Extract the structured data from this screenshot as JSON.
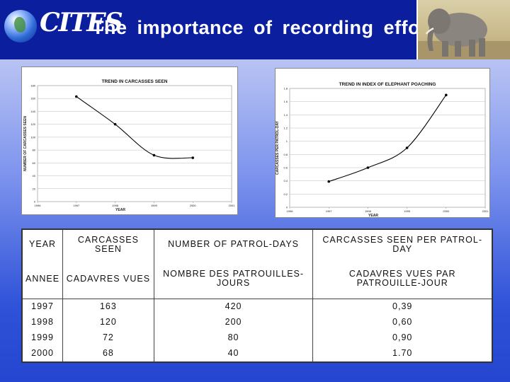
{
  "header": {
    "logo_text": "CITES",
    "title": "The importance of recording effort"
  },
  "colors": {
    "header_bg": "#0a1e9e",
    "line": "#000000"
  },
  "chart_data": [
    {
      "type": "line",
      "title": "TREND IN CARCASSES SEEN",
      "xlabel": "YEAR",
      "ylabel": "NUMBER OF CARCASSES SEEN",
      "x_ticks": [
        "1996",
        "1997",
        "1998",
        "1999",
        "2000",
        "2001"
      ],
      "y_ticks": [
        "0",
        "20",
        "40",
        "60",
        "80",
        "100",
        "120",
        "140",
        "160",
        "180"
      ],
      "xlim": [
        1996,
        2001
      ],
      "ylim": [
        0,
        180
      ],
      "grid": true,
      "series": [
        {
          "x": [
            1997,
            1998,
            1999,
            2000
          ],
          "y": [
            163,
            120,
            72,
            68
          ]
        }
      ]
    },
    {
      "type": "line",
      "title": "TREND IN INDEX OF ELEPHANT POACHING",
      "xlabel": "YEAR",
      "ylabel": "CARCASSES PER PATROL-DAY",
      "x_ticks": [
        "1996",
        "1997",
        "1998",
        "1999",
        "2000",
        "2001"
      ],
      "y_ticks": [
        "0",
        "0.2",
        "0.4",
        "0.6",
        "0.8",
        "1",
        "1.2",
        "1.4",
        "1.6",
        "1.8"
      ],
      "xlim": [
        1996,
        2001
      ],
      "ylim": [
        0,
        1.8
      ],
      "grid": true,
      "series": [
        {
          "x": [
            1997,
            1998,
            1999,
            2000
          ],
          "y": [
            0.39,
            0.6,
            0.9,
            1.7
          ]
        }
      ]
    }
  ],
  "table": {
    "headers": [
      [
        "YEAR",
        "CARCASSES SEEN",
        "NUMBER OF PATROL-DAYS",
        "CARCASSES SEEN PER PATROL-DAY"
      ],
      [
        "ANNEE",
        "CADAVRES VUES",
        "NOMBRE DES PATROUILLES-JOURS",
        "CADAVRES VUES PAR PATROUILLE-JOUR"
      ]
    ],
    "rows": [
      [
        "1997",
        "163",
        "420",
        "0,39"
      ],
      [
        "1998",
        "120",
        "200",
        "0,60"
      ],
      [
        "1999",
        "72",
        "80",
        "0,90"
      ],
      [
        "2000",
        "68",
        "40",
        "1.70"
      ]
    ]
  }
}
